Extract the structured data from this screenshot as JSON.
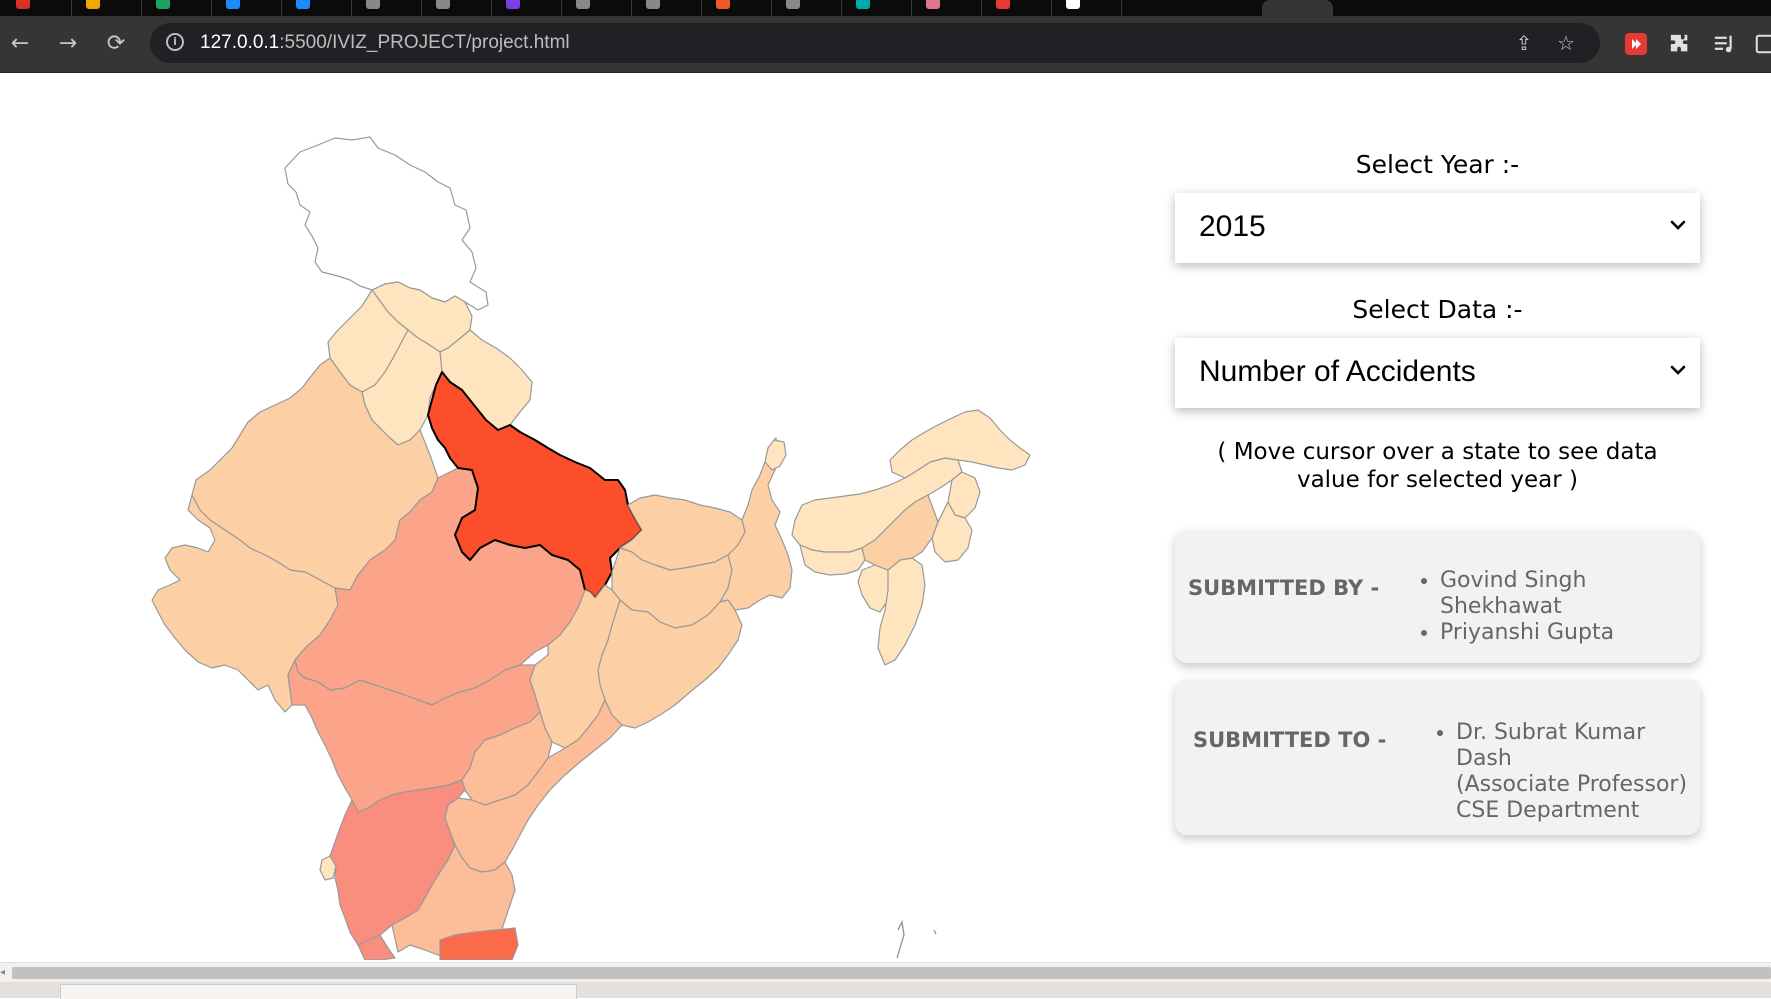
{
  "browser": {
    "url_host": "127.0.0.1",
    "url_path": ":5500/IVIZ_PROJECT/project.html",
    "nav_icons": {
      "back": "back-arrow-icon",
      "forward": "forward-arrow-icon",
      "reload": "reload-icon"
    },
    "omnibox_icons": [
      "site-info-icon",
      "share-icon",
      "bookmark-star-icon"
    ],
    "toolbar_icons": [
      "extension-red-icon",
      "extensions-puzzle-icon",
      "reading-list-icon"
    ],
    "tab_favicon_colors": [
      "#d93025",
      "#f2a600",
      "#1aa260",
      "#1a8cff",
      "#1a8cff",
      "#888888",
      "#888888",
      "#7b3fe4",
      "#888888",
      "#888888",
      "#f15a24",
      "#888888",
      "#0aa",
      "#e4738f",
      "#e53935",
      "#ffffff"
    ]
  },
  "controls": {
    "year_label": "Select Year :-",
    "year_value": "2015",
    "data_label": "Select Data :-",
    "data_value": "Number of Accidents",
    "hint": "( Move cursor over a state to see data value for selected year )"
  },
  "submitted_by": {
    "title": "SUBMITTED BY -",
    "names": [
      "Govind Singh Shekhawat",
      "Priyanshi Gupta"
    ]
  },
  "submitted_to": {
    "title": "SUBMITTED TO -",
    "lines": [
      "Dr. Subrat Kumar Dash",
      "(Associate Professor)",
      "CSE Department"
    ]
  },
  "map": {
    "highlighted_state_color": "#fc4e2a",
    "scale_colors": [
      "#ffffff",
      "#fee5bf",
      "#fdcfa5",
      "#fdbd98",
      "#fba48a",
      "#f98e7e",
      "#fc4e2a"
    ],
    "border_color": "#999999"
  }
}
